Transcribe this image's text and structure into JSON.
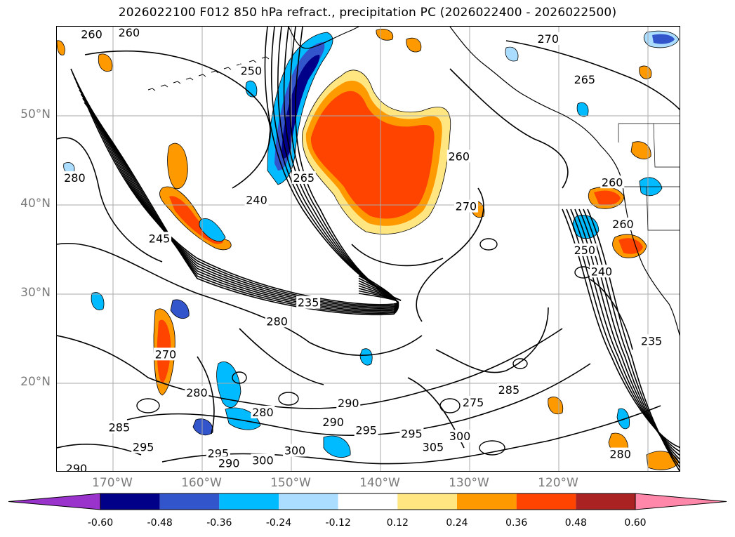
{
  "title": "2026022100 F012 850 hPa refract., precipitation PC (2026022400 - 2026022500)",
  "map": {
    "lat_labels": [
      {
        "label": "50°N",
        "lat": 50
      },
      {
        "label": "40°N",
        "lat": 40
      },
      {
        "label": "30°N",
        "lat": 30
      },
      {
        "label": "20°N",
        "lat": 20
      }
    ],
    "lon_labels": [
      {
        "label": "170°W",
        "lon": -170
      },
      {
        "label": "160°W",
        "lon": -160
      },
      {
        "label": "150°W",
        "lon": -150
      },
      {
        "label": "140°W",
        "lon": -140
      },
      {
        "label": "130°W",
        "lon": -130
      },
      {
        "label": "120°W",
        "lon": -120
      }
    ],
    "extent": {
      "lon_min": -176.3,
      "lon_max": -106.3,
      "lat_min": 10,
      "lat_max": 60
    },
    "contour_labels": [
      {
        "text": "260",
        "lon": -172.4,
        "lat": 59.1
      },
      {
        "text": "260",
        "lon": -168.2,
        "lat": 59.3
      },
      {
        "text": "250",
        "lon": -154.5,
        "lat": 55.0
      },
      {
        "text": "270",
        "lon": -121.2,
        "lat": 58.6
      },
      {
        "text": "265",
        "lon": -117.1,
        "lat": 54.0
      },
      {
        "text": "260",
        "lon": -131.2,
        "lat": 45.4
      },
      {
        "text": "265",
        "lon": -148.6,
        "lat": 43.0
      },
      {
        "text": "240",
        "lon": -153.9,
        "lat": 40.5
      },
      {
        "text": "280",
        "lon": -174.3,
        "lat": 43.0
      },
      {
        "text": "245",
        "lon": -164.8,
        "lat": 36.2
      },
      {
        "text": "270",
        "lon": -130.4,
        "lat": 39.8
      },
      {
        "text": "260",
        "lon": -114.0,
        "lat": 42.5
      },
      {
        "text": "260",
        "lon": -112.8,
        "lat": 37.8
      },
      {
        "text": "250",
        "lon": -117.1,
        "lat": 34.9
      },
      {
        "text": "240",
        "lon": -115.2,
        "lat": 32.5
      },
      {
        "text": "235",
        "lon": -148.1,
        "lat": 29.0
      },
      {
        "text": "280",
        "lon": -151.6,
        "lat": 26.9
      },
      {
        "text": "235",
        "lon": -109.6,
        "lat": 24.7
      },
      {
        "text": "270",
        "lon": -164.1,
        "lat": 23.2
      },
      {
        "text": "280",
        "lon": -160.6,
        "lat": 18.9
      },
      {
        "text": "285",
        "lon": -125.6,
        "lat": 19.2
      },
      {
        "text": "275",
        "lon": -129.6,
        "lat": 17.8
      },
      {
        "text": "290",
        "lon": -143.6,
        "lat": 17.7
      },
      {
        "text": "280",
        "lon": -153.2,
        "lat": 16.7
      },
      {
        "text": "290",
        "lon": -145.3,
        "lat": 15.6
      },
      {
        "text": "295",
        "lon": -141.6,
        "lat": 14.7
      },
      {
        "text": "295",
        "lon": -136.5,
        "lat": 14.3
      },
      {
        "text": "300",
        "lon": -131.1,
        "lat": 14.0
      },
      {
        "text": "285",
        "lon": -169.3,
        "lat": 15.0
      },
      {
        "text": "305",
        "lon": -134.1,
        "lat": 12.8
      },
      {
        "text": "300",
        "lon": -149.6,
        "lat": 12.4
      },
      {
        "text": "295",
        "lon": -166.6,
        "lat": 12.8
      },
      {
        "text": "295",
        "lon": -158.2,
        "lat": 12.1
      },
      {
        "text": "290",
        "lon": -157.0,
        "lat": 11.0
      },
      {
        "text": "300",
        "lon": -153.2,
        "lat": 11.3
      },
      {
        "text": "290",
        "lon": -174.1,
        "lat": 10.4
      },
      {
        "text": "280",
        "lon": -113.1,
        "lat": 12.0
      }
    ]
  },
  "colorbar": {
    "ticks": [
      "-0.60",
      "-0.48",
      "-0.36",
      "-0.24",
      "-0.12",
      "0.12",
      "0.24",
      "0.36",
      "0.48",
      "0.60"
    ],
    "under_color": "#9933cc",
    "over_color": "#ff88aa",
    "colors": [
      "#000088",
      "#3355cc",
      "#00bbff",
      "#aaddff",
      "#ffffff",
      "#ffe680",
      "#ff9900",
      "#ff4400",
      "#aa2222"
    ]
  }
}
